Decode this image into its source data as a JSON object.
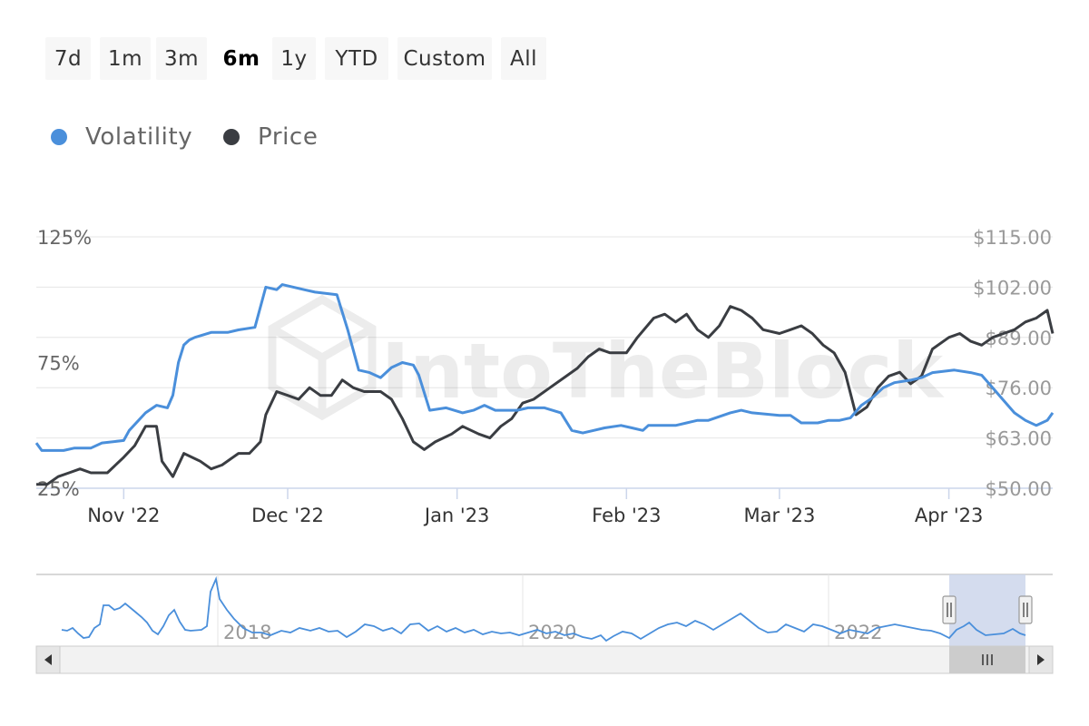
{
  "range_selector": {
    "buttons": [
      "7d",
      "1m",
      "3m",
      "6m",
      "1y",
      "YTD",
      "Custom",
      "All"
    ],
    "selected": "6m"
  },
  "watermark": "IntoTheBlock",
  "colors": {
    "volatility": "#4a8fdb",
    "price": "#3a3d42",
    "grid": "#e6e6e6",
    "navigator_mask": "#ccd6eb"
  },
  "chart_data": {
    "type": "line",
    "legend": [
      "Volatility",
      "Price"
    ],
    "legend_placement": "top-left",
    "x_ticks": [
      "Nov '22",
      "Dec '22",
      "Jan '23",
      "Feb '23",
      "Mar '23",
      "Apr '23"
    ],
    "y_left_ticks": [
      "125%",
      "75%",
      "25%"
    ],
    "y_right_ticks": [
      "$115.00",
      "$102.00",
      "$89.00",
      "$76.00",
      "$63.00",
      "$50.00"
    ],
    "y_left_range": [
      25,
      125
    ],
    "y_right_range": [
      50,
      115
    ],
    "x_range": [
      "2022-10-16",
      "2023-04-20"
    ],
    "series": [
      {
        "name": "Volatility",
        "axis": "left",
        "points": [
          [
            "2022-10-16",
            43
          ],
          [
            "2022-10-17",
            40
          ],
          [
            "2022-10-21",
            40
          ],
          [
            "2022-10-23",
            41
          ],
          [
            "2022-10-26",
            41
          ],
          [
            "2022-10-28",
            43
          ],
          [
            "2022-11-01",
            44
          ],
          [
            "2022-11-02",
            48
          ],
          [
            "2022-11-05",
            55
          ],
          [
            "2022-11-07",
            58
          ],
          [
            "2022-11-09",
            57
          ],
          [
            "2022-11-10",
            62
          ],
          [
            "2022-11-11",
            75
          ],
          [
            "2022-11-12",
            82
          ],
          [
            "2022-11-13",
            84
          ],
          [
            "2022-11-14",
            85
          ],
          [
            "2022-11-17",
            87
          ],
          [
            "2022-11-20",
            87
          ],
          [
            "2022-11-22",
            88
          ],
          [
            "2022-11-25",
            89
          ],
          [
            "2022-11-27",
            105
          ],
          [
            "2022-11-29",
            104
          ],
          [
            "2022-11-30",
            106
          ],
          [
            "2022-12-04",
            104
          ],
          [
            "2022-12-06",
            103
          ],
          [
            "2022-12-10",
            102
          ],
          [
            "2022-12-12",
            88
          ],
          [
            "2022-12-14",
            72
          ],
          [
            "2022-12-16",
            71
          ],
          [
            "2022-12-18",
            69
          ],
          [
            "2022-12-20",
            73
          ],
          [
            "2022-12-22",
            75
          ],
          [
            "2022-12-24",
            74
          ],
          [
            "2022-12-25",
            70
          ],
          [
            "2022-12-27",
            56
          ],
          [
            "2022-12-30",
            57
          ],
          [
            "2023-01-02",
            55
          ],
          [
            "2023-01-04",
            56
          ],
          [
            "2023-01-06",
            58
          ],
          [
            "2023-01-08",
            56
          ],
          [
            "2023-01-12",
            56
          ],
          [
            "2023-01-14",
            57
          ],
          [
            "2023-01-17",
            57
          ],
          [
            "2023-01-20",
            55
          ],
          [
            "2023-01-22",
            48
          ],
          [
            "2023-01-24",
            47
          ],
          [
            "2023-01-26",
            48
          ],
          [
            "2023-01-28",
            49
          ],
          [
            "2023-01-31",
            50
          ],
          [
            "2023-02-02",
            49
          ],
          [
            "2023-02-04",
            48
          ],
          [
            "2023-02-05",
            50
          ],
          [
            "2023-02-07",
            50
          ],
          [
            "2023-02-10",
            50
          ],
          [
            "2023-02-12",
            51
          ],
          [
            "2023-02-14",
            52
          ],
          [
            "2023-02-16",
            52
          ],
          [
            "2023-02-20",
            55
          ],
          [
            "2023-02-22",
            56
          ],
          [
            "2023-02-24",
            55
          ],
          [
            "2023-03-01",
            54
          ],
          [
            "2023-03-03",
            54
          ],
          [
            "2023-03-05",
            51
          ],
          [
            "2023-03-08",
            51
          ],
          [
            "2023-03-10",
            52
          ],
          [
            "2023-03-12",
            52
          ],
          [
            "2023-03-14",
            53
          ],
          [
            "2023-03-16",
            58
          ],
          [
            "2023-03-18",
            61
          ],
          [
            "2023-03-20",
            65
          ],
          [
            "2023-03-22",
            67
          ],
          [
            "2023-03-25",
            68
          ],
          [
            "2023-03-27",
            69
          ],
          [
            "2023-03-29",
            71
          ],
          [
            "2023-04-02",
            72
          ],
          [
            "2023-04-05",
            71
          ],
          [
            "2023-04-07",
            70
          ],
          [
            "2023-04-09",
            65
          ],
          [
            "2023-04-11",
            60
          ],
          [
            "2023-04-13",
            55
          ],
          [
            "2023-04-15",
            52
          ],
          [
            "2023-04-17",
            50
          ],
          [
            "2023-04-19",
            52
          ],
          [
            "2023-04-20",
            55
          ]
        ]
      },
      {
        "name": "Price",
        "axis": "right",
        "points": [
          [
            "2022-10-16",
            51
          ],
          [
            "2022-10-18",
            51
          ],
          [
            "2022-10-20",
            53
          ],
          [
            "2022-10-22",
            54
          ],
          [
            "2022-10-24",
            55
          ],
          [
            "2022-10-26",
            54
          ],
          [
            "2022-10-29",
            54
          ],
          [
            "2022-11-01",
            58
          ],
          [
            "2022-11-03",
            61
          ],
          [
            "2022-11-05",
            66
          ],
          [
            "2022-11-07",
            66
          ],
          [
            "2022-11-08",
            57
          ],
          [
            "2022-11-10",
            53
          ],
          [
            "2022-11-11",
            56
          ],
          [
            "2022-11-12",
            59
          ],
          [
            "2022-11-15",
            57
          ],
          [
            "2022-11-17",
            55
          ],
          [
            "2022-11-19",
            56
          ],
          [
            "2022-11-22",
            59
          ],
          [
            "2022-11-24",
            59
          ],
          [
            "2022-11-26",
            62
          ],
          [
            "2022-11-27",
            69
          ],
          [
            "2022-11-29",
            75
          ],
          [
            "2022-12-01",
            74
          ],
          [
            "2022-12-03",
            73
          ],
          [
            "2022-12-05",
            76
          ],
          [
            "2022-12-07",
            74
          ],
          [
            "2022-12-09",
            74
          ],
          [
            "2022-12-11",
            78
          ],
          [
            "2022-12-13",
            76
          ],
          [
            "2022-12-15",
            75
          ],
          [
            "2022-12-18",
            75
          ],
          [
            "2022-12-20",
            73
          ],
          [
            "2022-12-22",
            68
          ],
          [
            "2022-12-24",
            62
          ],
          [
            "2022-12-26",
            60
          ],
          [
            "2022-12-28",
            62
          ],
          [
            "2022-12-31",
            64
          ],
          [
            "2023-01-02",
            66
          ],
          [
            "2023-01-05",
            64
          ],
          [
            "2023-01-07",
            63
          ],
          [
            "2023-01-09",
            66
          ],
          [
            "2023-01-11",
            68
          ],
          [
            "2023-01-13",
            72
          ],
          [
            "2023-01-15",
            73
          ],
          [
            "2023-01-18",
            76
          ],
          [
            "2023-01-21",
            79
          ],
          [
            "2023-01-23",
            81
          ],
          [
            "2023-01-25",
            84
          ],
          [
            "2023-01-27",
            86
          ],
          [
            "2023-01-29",
            85
          ],
          [
            "2023-02-01",
            85
          ],
          [
            "2023-02-03",
            89
          ],
          [
            "2023-02-06",
            94
          ],
          [
            "2023-02-08",
            95
          ],
          [
            "2023-02-10",
            93
          ],
          [
            "2023-02-12",
            95
          ],
          [
            "2023-02-14",
            91
          ],
          [
            "2023-02-16",
            89
          ],
          [
            "2023-02-18",
            92
          ],
          [
            "2023-02-20",
            97
          ],
          [
            "2023-02-22",
            96
          ],
          [
            "2023-02-24",
            94
          ],
          [
            "2023-02-26",
            91
          ],
          [
            "2023-03-01",
            90
          ],
          [
            "2023-03-03",
            91
          ],
          [
            "2023-03-05",
            92
          ],
          [
            "2023-03-07",
            90
          ],
          [
            "2023-03-09",
            87
          ],
          [
            "2023-03-11",
            85
          ],
          [
            "2023-03-13",
            80
          ],
          [
            "2023-03-15",
            69
          ],
          [
            "2023-03-17",
            71
          ],
          [
            "2023-03-19",
            76
          ],
          [
            "2023-03-21",
            79
          ],
          [
            "2023-03-23",
            80
          ],
          [
            "2023-03-25",
            77
          ],
          [
            "2023-03-27",
            79
          ],
          [
            "2023-03-29",
            86
          ],
          [
            "2023-04-01",
            89
          ],
          [
            "2023-04-03",
            90
          ],
          [
            "2023-04-05",
            88
          ],
          [
            "2023-04-07",
            87
          ],
          [
            "2023-04-09",
            89
          ],
          [
            "2023-04-11",
            90
          ],
          [
            "2023-04-13",
            91
          ],
          [
            "2023-04-15",
            93
          ],
          [
            "2023-04-17",
            94
          ],
          [
            "2023-04-19",
            96
          ],
          [
            "2023-04-20",
            90
          ]
        ]
      }
    ],
    "navigator": {
      "x_labels": [
        "2018",
        "2020",
        "2022"
      ],
      "selected_window": [
        "2022-10-16",
        "2023-04-20"
      ]
    },
    "grid": true
  }
}
